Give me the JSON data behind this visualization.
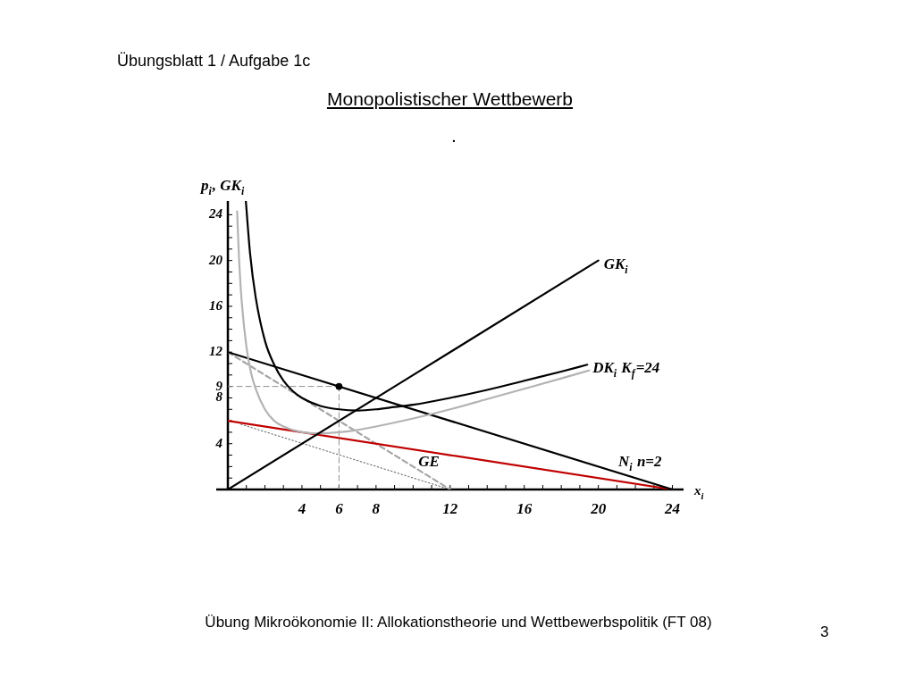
{
  "chart_data": {
    "type": "line",
    "title": "Monopolistischer Wettbewerb",
    "subtitle": "Übungsblatt 1 / Aufgabe 1c",
    "xlabel": "x$_{i}$",
    "ylabel": "p$_{i}$, GK$_{i}$",
    "annotations": [
      ".",
      "Übung Mikroökonomie II: Allokationstheorie und Wettbewerbspolitik (FT 08)",
      "3"
    ],
    "xlim": [
      0,
      24.6
    ],
    "ylim": [
      0,
      25.2
    ],
    "xticks": [
      {
        "value": 1,
        "label": null
      },
      {
        "value": 2,
        "label": null
      },
      {
        "value": 3,
        "label": null
      },
      4,
      {
        "value": 5,
        "label": null
      },
      6,
      {
        "value": 7,
        "label": null
      },
      8,
      {
        "value": 9,
        "label": null
      },
      {
        "value": 10,
        "label": null
      },
      {
        "value": 11,
        "label": null
      },
      12,
      {
        "value": 13,
        "label": null
      },
      {
        "value": 14,
        "label": null
      },
      {
        "value": 15,
        "label": null
      },
      16,
      {
        "value": 17,
        "label": null
      },
      {
        "value": 18,
        "label": null
      },
      {
        "value": 19,
        "label": null
      },
      20,
      {
        "value": 21,
        "label": null
      },
      {
        "value": 22,
        "label": null
      },
      {
        "value": 23,
        "label": null
      },
      24
    ],
    "yticks": [
      {
        "value": 1,
        "label": null
      },
      {
        "value": 2,
        "label": null
      },
      {
        "value": 3,
        "label": null
      },
      4,
      {
        "value": 5,
        "label": null
      },
      {
        "value": 6,
        "label": null
      },
      {
        "value": 7,
        "label": null
      },
      8,
      9,
      {
        "value": 10,
        "label": null
      },
      {
        "value": 11,
        "label": null
      },
      12,
      {
        "value": 13,
        "label": null
      },
      {
        "value": 14,
        "label": null
      },
      {
        "value": 15,
        "label": null
      },
      16,
      {
        "value": 17,
        "label": null
      },
      {
        "value": 18,
        "label": null
      },
      {
        "value": 19,
        "label": null
      },
      20,
      {
        "value": 21,
        "label": null
      },
      {
        "value": 22,
        "label": null
      },
      {
        "value": 23,
        "label": null
      },
      24
    ],
    "marker": "none",
    "line_style": "solid",
    "series": [
      {
        "name": "GK$_{i}$",
        "color": "#000000",
        "x": [
          0,
          20
        ],
        "values": [
          0,
          20
        ]
      },
      {
        "name": "DK$_{i}$ K$_{f}$=24",
        "color": "#000000",
        "x": [
          0.97,
          1.2,
          1.5,
          2,
          2.5,
          3,
          3.5,
          4,
          5,
          6,
          7,
          8,
          9,
          10,
          12,
          14,
          16,
          18,
          19.4
        ],
        "values": [
          25.2,
          20.6,
          16.8,
          13.0,
          10.9,
          9.5,
          8.6,
          8.0,
          7.3,
          7.0,
          6.9,
          7.0,
          7.2,
          7.4,
          8.0,
          8.7,
          9.5,
          10.3,
          10.9
        ]
      },
      {
        "color": "#b3b3b3",
        "x": [
          0.5,
          0.6,
          0.75,
          1,
          1.25,
          1.5,
          2,
          2.5,
          3,
          4,
          5,
          6,
          7,
          8,
          10,
          12,
          14,
          16,
          18,
          19.5
        ],
        "values": [
          24.3,
          20.3,
          16.4,
          12.5,
          10.2,
          8.8,
          7.0,
          6.0,
          5.5,
          5.0,
          4.9,
          5.0,
          5.2,
          5.5,
          6.2,
          7.0,
          7.9,
          8.8,
          9.7,
          10.4
        ]
      },
      {
        "name": "N$_{i}$ n=2",
        "color": "#000000",
        "x": [
          0,
          24
        ],
        "values": [
          12,
          0
        ]
      },
      {
        "color": "#c00000",
        "x": [
          0,
          24
        ],
        "values": [
          6,
          0
        ]
      },
      {
        "name": "GE",
        "color": "#a6a6a6",
        "line_style": "dashed",
        "x": [
          0,
          12
        ],
        "values": [
          12,
          0
        ]
      },
      {
        "color": "#595959",
        "line_style": "dotted",
        "x": [
          0.7,
          12
        ],
        "values": [
          5.7,
          0
        ]
      },
      {
        "color": "#8c8c8c",
        "line_style": "dashed",
        "x": [
          0,
          6
        ],
        "values": [
          9,
          9
        ]
      },
      {
        "color": "#8c8c8c",
        "line_style": "dashed",
        "x": [
          6,
          6
        ],
        "values": [
          0,
          9
        ]
      },
      {
        "type": "scatter",
        "color": "#000000",
        "marker": "circle",
        "x": [
          6
        ],
        "values": [
          9
        ]
      }
    ]
  }
}
